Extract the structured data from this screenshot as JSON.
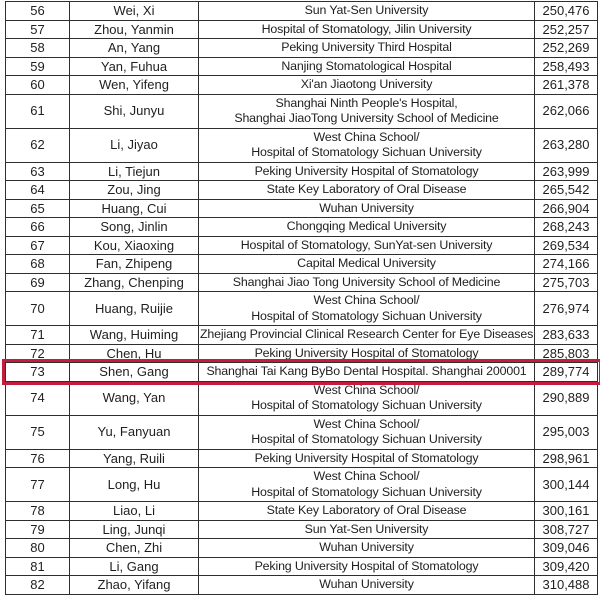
{
  "colors": {
    "highlight_border": "#c41c3c",
    "grid_line": "#2e2e2e",
    "text": "#1f1f1f",
    "background": "#ffffff"
  },
  "table": {
    "description": "researcher-ranking-table",
    "highlighted_rank": "73",
    "rows": [
      {
        "rank": "56",
        "name": "Wei, Xi",
        "affiliation": [
          "Sun Yat-Sen University"
        ],
        "value": "250,476"
      },
      {
        "rank": "57",
        "name": "Zhou, Yanmin",
        "affiliation": [
          "Hospital of Stomatology, Jilin University"
        ],
        "value": "252,257"
      },
      {
        "rank": "58",
        "name": "An, Yang",
        "affiliation": [
          "Peking University Third Hospital"
        ],
        "value": "252,269"
      },
      {
        "rank": "59",
        "name": "Yan, Fuhua",
        "affiliation": [
          "Nanjing Stomatological Hospital"
        ],
        "value": "258,493"
      },
      {
        "rank": "60",
        "name": "Wen, Yifeng",
        "affiliation": [
          "Xi'an Jiaotong University"
        ],
        "value": "261,378"
      },
      {
        "rank": "61",
        "name": "Shi, Junyu",
        "affiliation": [
          "Shanghai Ninth People's Hospital,",
          "Shanghai JiaoTong University School of Medicine"
        ],
        "value": "262,066"
      },
      {
        "rank": "62",
        "name": "Li, Jiyao",
        "affiliation": [
          "West China School/",
          "Hospital of Stomatology Sichuan University"
        ],
        "value": "263,280"
      },
      {
        "rank": "63",
        "name": "Li, Tiejun",
        "affiliation": [
          "Peking University Hospital of Stomatology"
        ],
        "value": "263,999"
      },
      {
        "rank": "64",
        "name": "Zou, Jing",
        "affiliation": [
          "State Key Laboratory of Oral Disease"
        ],
        "value": "265,542"
      },
      {
        "rank": "65",
        "name": "Huang, Cui",
        "affiliation": [
          "Wuhan University"
        ],
        "value": "266,904"
      },
      {
        "rank": "66",
        "name": "Song, Jinlin",
        "affiliation": [
          "Chongqing Medical University"
        ],
        "value": "268,243"
      },
      {
        "rank": "67",
        "name": "Kou, Xiaoxing",
        "affiliation": [
          "Hospital of Stomatology, SunYat-sen University"
        ],
        "value": "269,534"
      },
      {
        "rank": "68",
        "name": "Fan, Zhipeng",
        "affiliation": [
          "Capital Medical University"
        ],
        "value": "274,166"
      },
      {
        "rank": "69",
        "name": "Zhang, Chenping",
        "affiliation": [
          "Shanghai Jiao Tong University School of Medicine"
        ],
        "value": "275,703"
      },
      {
        "rank": "70",
        "name": "Huang, Ruijie",
        "affiliation": [
          "West China School/",
          "Hospital of Stomatology Sichuan University"
        ],
        "value": "276,974"
      },
      {
        "rank": "71",
        "name": "Wang, Huiming",
        "affiliation": [
          "Zhejiang Provincial Clinical Research Center for Eye Diseases"
        ],
        "value": "283,633"
      },
      {
        "rank": "72",
        "name": "Chen, Hu",
        "affiliation": [
          "Peking University Hospital of Stomatology"
        ],
        "value": "285,803"
      },
      {
        "rank": "73",
        "name": "Shen, Gang",
        "affiliation": [
          "Shanghai Tai Kang ByBo Dental Hospital. Shanghai 200001"
        ],
        "value": "289,774"
      },
      {
        "rank": "74",
        "name": "Wang, Yan",
        "affiliation": [
          "West China School/",
          "Hospital of Stomatology Sichuan University"
        ],
        "value": "290,889"
      },
      {
        "rank": "75",
        "name": "Yu, Fanyuan",
        "affiliation": [
          "West China School/",
          "Hospital of Stomatology Sichuan University"
        ],
        "value": "295,003"
      },
      {
        "rank": "76",
        "name": "Yang, Ruili",
        "affiliation": [
          "Peking University Hospital of Stomatology"
        ],
        "value": "298,961"
      },
      {
        "rank": "77",
        "name": "Long, Hu",
        "affiliation": [
          "West China School/",
          "Hospital of Stomatology Sichuan University"
        ],
        "value": "300,144"
      },
      {
        "rank": "78",
        "name": "Liao, Li",
        "affiliation": [
          "State Key Laboratory of Oral Disease"
        ],
        "value": "300,161"
      },
      {
        "rank": "79",
        "name": "Ling, Junqi",
        "affiliation": [
          "Sun Yat-Sen University"
        ],
        "value": "308,727"
      },
      {
        "rank": "80",
        "name": "Chen, Zhi",
        "affiliation": [
          "Wuhan University"
        ],
        "value": "309,046"
      },
      {
        "rank": "81",
        "name": "Li, Gang",
        "affiliation": [
          "Peking University Hospital of Stomatology"
        ],
        "value": "309,420"
      },
      {
        "rank": "82",
        "name": "Zhao, Yifang",
        "affiliation": [
          "Wuhan University"
        ],
        "value": "310,488"
      }
    ]
  }
}
